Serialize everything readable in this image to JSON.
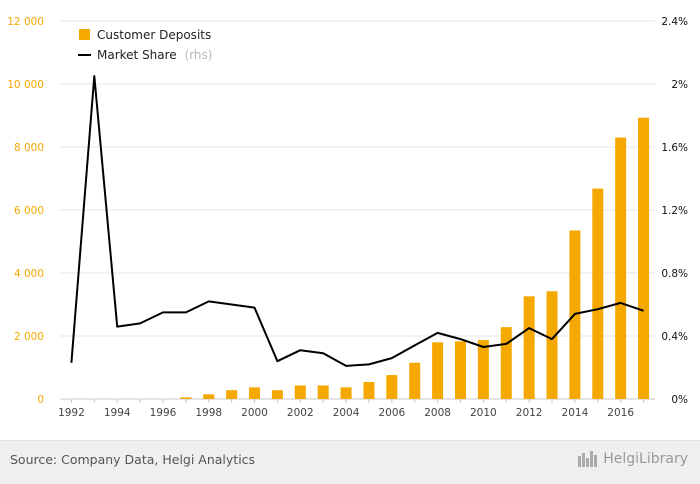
{
  "chart_data": {
    "type": "bar",
    "x": [
      1992,
      1993,
      1994,
      1995,
      1996,
      1997,
      1998,
      1999,
      2000,
      2001,
      2002,
      2003,
      2004,
      2005,
      2006,
      2007,
      2008,
      2009,
      2010,
      2011,
      2012,
      2013,
      2014,
      2015,
      2016,
      2017
    ],
    "series": [
      {
        "name": "Customer Deposits",
        "type": "bar",
        "axis": "left",
        "color": "#f5a800",
        "values": [
          0,
          0,
          0,
          0,
          0,
          50,
          150,
          280,
          370,
          280,
          430,
          430,
          370,
          540,
          760,
          1150,
          1800,
          1830,
          1870,
          2280,
          3260,
          3420,
          5350,
          6680,
          8300,
          8930
        ]
      },
      {
        "name": "Market Share",
        "suffix": "(rhs)",
        "type": "line",
        "axis": "right",
        "color": "#000000",
        "values": [
          0.23,
          2.05,
          0.46,
          0.48,
          0.55,
          0.55,
          0.62,
          0.6,
          0.58,
          0.24,
          0.31,
          0.29,
          0.21,
          0.22,
          0.26,
          0.34,
          0.42,
          0.38,
          0.33,
          0.35,
          0.45,
          0.38,
          0.54,
          0.57,
          0.61,
          0.56
        ]
      }
    ],
    "y_left": {
      "ylim": [
        0,
        12000
      ],
      "ticks": [
        0,
        2000,
        4000,
        6000,
        8000,
        10000,
        12000
      ],
      "tick_labels": [
        "0",
        "2 000",
        "4 000",
        "6 000",
        "8 000",
        "10 000",
        "12 000"
      ],
      "color": "#f5a800"
    },
    "y_right": {
      "ylim": [
        0,
        2.4
      ],
      "ticks": [
        0,
        0.4,
        0.8,
        1.2,
        1.6,
        2,
        2.4
      ],
      "tick_labels": [
        "0%",
        "0.4%",
        "0.8%",
        "1.2%",
        "1.6%",
        "2%",
        "2.4%"
      ]
    },
    "x_tick_labels": [
      "1992",
      "1994",
      "1996",
      "1998",
      "2000",
      "2002",
      "2004",
      "2006",
      "2008",
      "2010",
      "2012",
      "2014",
      "2016"
    ],
    "legend_position": "top-left",
    "grid": true
  },
  "footer": {
    "source": "Source: Company Data, Helgi Analytics",
    "brand": "HelgiLibrary"
  },
  "colors": {
    "bar": "#f5a800",
    "line": "#000000",
    "grid": "#e6e6e6",
    "footer_bg": "#efefef"
  }
}
